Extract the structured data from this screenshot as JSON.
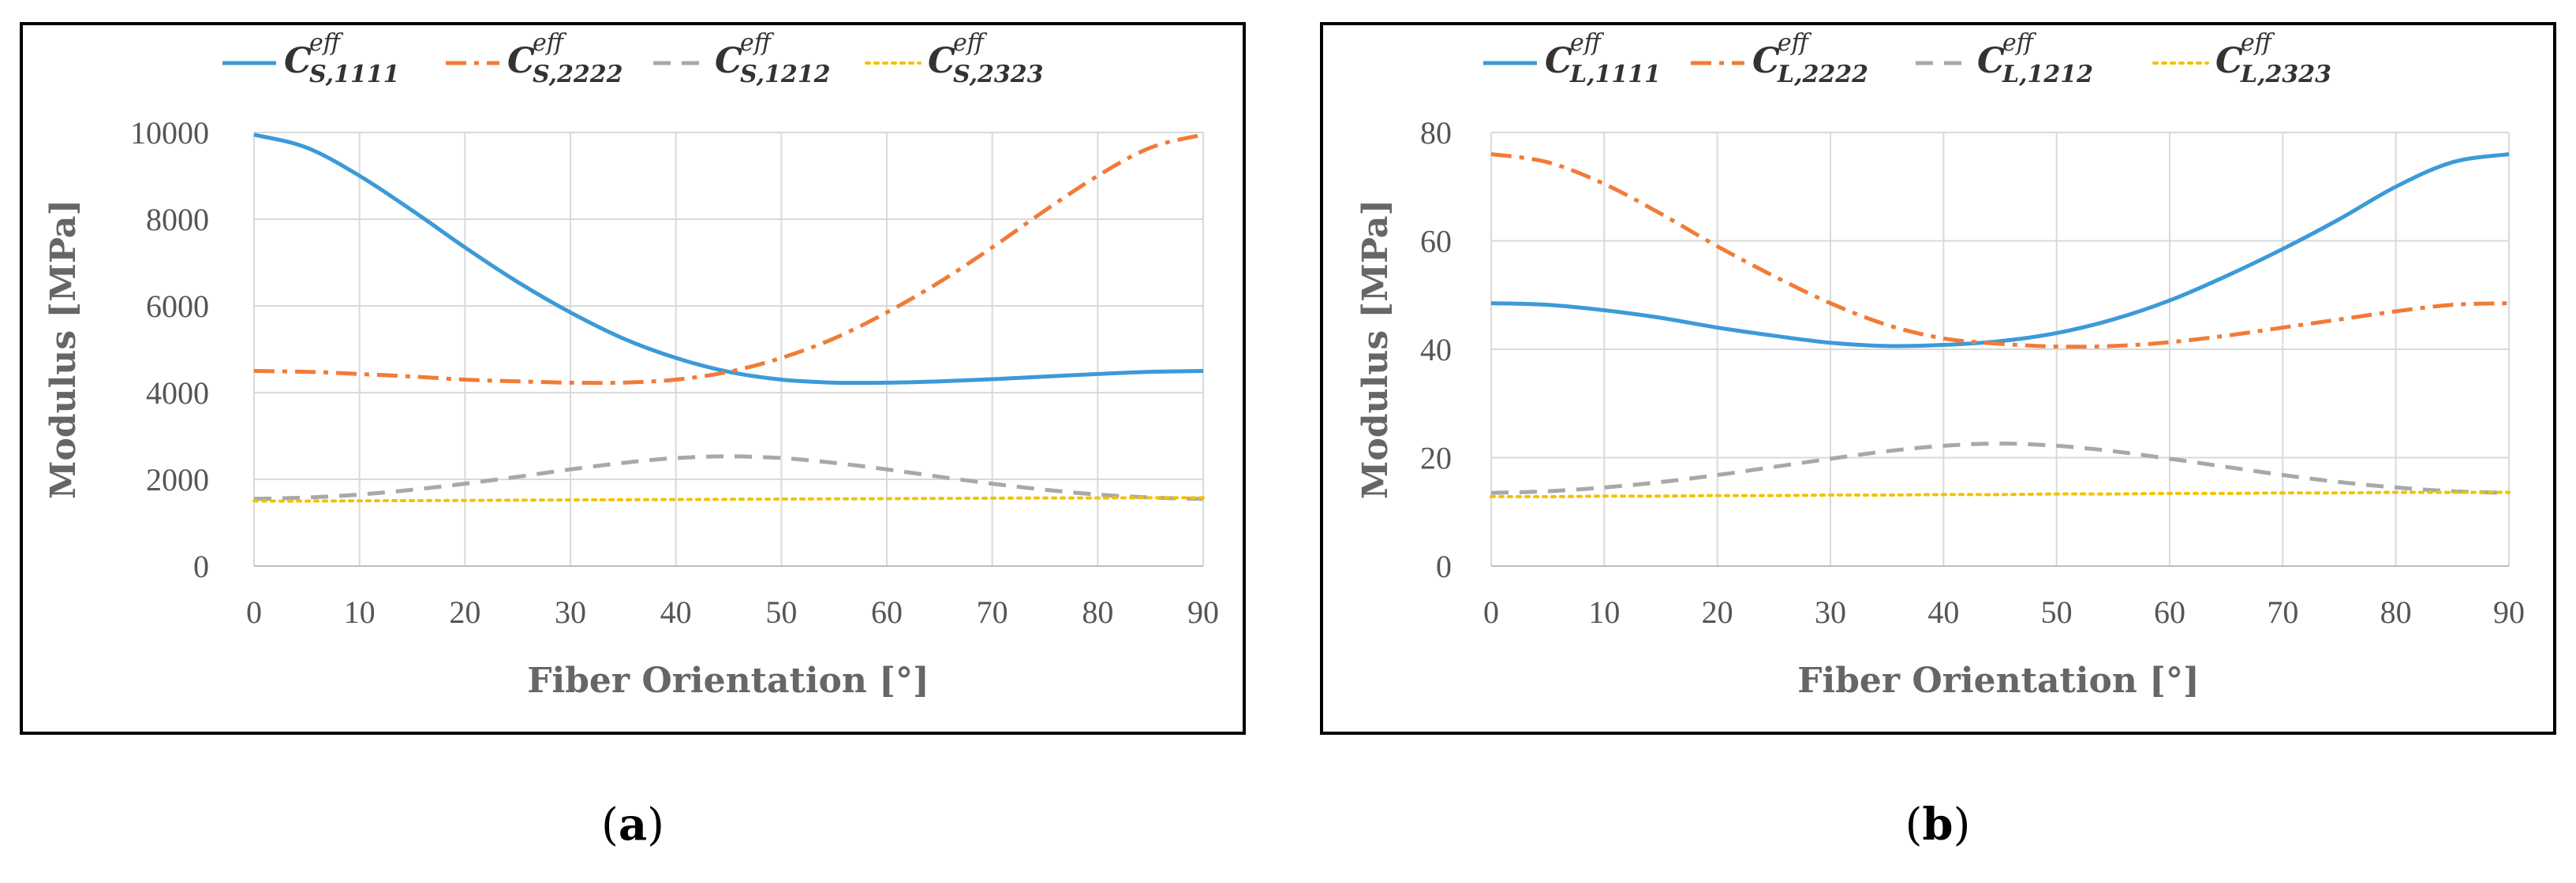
{
  "figure": {
    "panels": [
      {
        "label_open": "(",
        "label_letter": "a",
        "label_close": ")"
      },
      {
        "label_open": "(",
        "label_letter": "b",
        "label_close": ")"
      }
    ]
  },
  "chart_data": [
    {
      "type": "line",
      "xlabel": "Fiber Orientation [°]",
      "ylabel": "Modulus [MPa]",
      "xlim": [
        0,
        90
      ],
      "ylim": [
        0,
        10000
      ],
      "xticks": [
        0,
        10,
        20,
        30,
        40,
        50,
        60,
        70,
        80,
        90
      ],
      "yticks": [
        0,
        2000,
        4000,
        6000,
        8000,
        10000
      ],
      "grid": true,
      "legend_position": "top",
      "x": [
        0,
        5,
        10,
        15,
        20,
        25,
        30,
        35,
        40,
        45,
        50,
        55,
        60,
        65,
        70,
        75,
        80,
        85,
        90
      ],
      "series": [
        {
          "name": "C_S,1111^eff",
          "sym": "C",
          "sup": "eff",
          "sub": "S,1111",
          "color": "#3C9AD8",
          "dash": "solid",
          "values": [
            9950,
            9650,
            9000,
            8200,
            7350,
            6550,
            5850,
            5250,
            4800,
            4480,
            4300,
            4230,
            4230,
            4260,
            4310,
            4370,
            4430,
            4480,
            4500
          ]
        },
        {
          "name": "C_S,2222^eff",
          "sym": "C",
          "sup": "eff",
          "sub": "S,2222",
          "color": "#F07C38",
          "dash": "dashdot",
          "values": [
            4500,
            4480,
            4430,
            4370,
            4300,
            4260,
            4230,
            4230,
            4300,
            4480,
            4800,
            5250,
            5850,
            6550,
            7350,
            8200,
            9000,
            9650,
            9950
          ]
        },
        {
          "name": "C_S,1212^eff",
          "sym": "C",
          "sup": "eff",
          "sub": "S,1212",
          "color": "#A8A8A8",
          "dash": "dash",
          "values": [
            1550,
            1580,
            1650,
            1760,
            1900,
            2060,
            2230,
            2380,
            2490,
            2530,
            2490,
            2380,
            2230,
            2060,
            1900,
            1760,
            1650,
            1580,
            1550
          ]
        },
        {
          "name": "C_S,2323^eff",
          "sym": "C",
          "sup": "eff",
          "sub": "S,2323",
          "color": "#F2C200",
          "dash": "dot",
          "values": [
            1500,
            1500,
            1505,
            1510,
            1515,
            1520,
            1525,
            1530,
            1535,
            1540,
            1545,
            1550,
            1555,
            1560,
            1565,
            1570,
            1570,
            1575,
            1575
          ]
        }
      ]
    },
    {
      "type": "line",
      "xlabel": "Fiber Orientation [°]",
      "ylabel": "Modulus [MPa]",
      "xlim": [
        0,
        90
      ],
      "ylim": [
        0,
        80
      ],
      "xticks": [
        0,
        10,
        20,
        30,
        40,
        50,
        60,
        70,
        80,
        90
      ],
      "yticks": [
        0,
        20,
        40,
        60,
        80
      ],
      "grid": true,
      "legend_position": "top",
      "x": [
        0,
        5,
        10,
        15,
        20,
        25,
        30,
        35,
        40,
        45,
        50,
        55,
        60,
        65,
        70,
        75,
        80,
        85,
        90
      ],
      "series": [
        {
          "name": "C_L,1111^eff",
          "sym": "C",
          "sup": "eff",
          "sub": "L,1111",
          "color": "#3C9AD8",
          "dash": "solid",
          "values": [
            48.5,
            48.2,
            47.2,
            45.8,
            44.0,
            42.5,
            41.2,
            40.6,
            40.8,
            41.5,
            43.0,
            45.5,
            49.0,
            53.5,
            58.5,
            64.0,
            70.0,
            74.5,
            76.0
          ]
        },
        {
          "name": "C_L,2222^eff",
          "sym": "C",
          "sup": "eff",
          "sub": "L,2222",
          "color": "#F07C38",
          "dash": "dashdot",
          "values": [
            76.0,
            74.5,
            70.5,
            65.0,
            59.0,
            53.5,
            48.5,
            44.5,
            42.0,
            41.0,
            40.5,
            40.6,
            41.3,
            42.5,
            44.0,
            45.5,
            47.0,
            48.2,
            48.5
          ]
        },
        {
          "name": "C_L,1212^eff",
          "sym": "C",
          "sup": "eff",
          "sub": "L,1212",
          "color": "#A8A8A8",
          "dash": "dash",
          "values": [
            13.5,
            13.8,
            14.5,
            15.5,
            16.8,
            18.3,
            19.8,
            21.2,
            22.2,
            22.6,
            22.2,
            21.2,
            19.8,
            18.3,
            16.8,
            15.5,
            14.5,
            13.8,
            13.5
          ]
        },
        {
          "name": "C_L,2323^eff",
          "sym": "C",
          "sup": "eff",
          "sub": "L,2323",
          "color": "#F2C200",
          "dash": "dot",
          "values": [
            12.8,
            12.8,
            12.9,
            12.9,
            13.0,
            13.0,
            13.1,
            13.1,
            13.2,
            13.2,
            13.3,
            13.3,
            13.4,
            13.4,
            13.5,
            13.5,
            13.6,
            13.6,
            13.6
          ]
        }
      ]
    }
  ]
}
